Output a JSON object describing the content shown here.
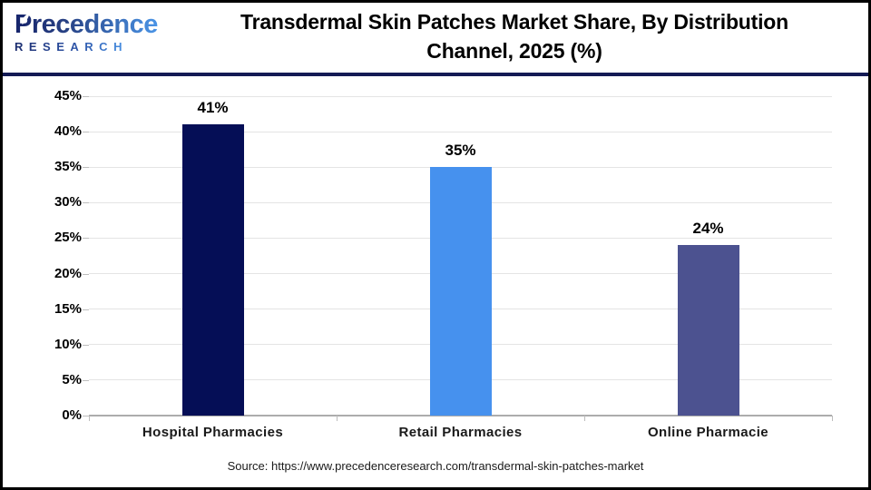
{
  "header": {
    "logo": {
      "name": "Precedence",
      "subtitle": "RESEARCH"
    },
    "title_line1": "Transdermal Skin Patches Market Share, By Distribution",
    "title_line2": "Channel, 2025 (%)"
  },
  "chart_data": {
    "type": "bar",
    "title": "Transdermal Skin Patches Market Share, By Distribution Channel, 2025 (%)",
    "categories": [
      "Hospital Pharmacies",
      "Retail Pharmacies",
      "Online Pharmacie"
    ],
    "values": [
      41,
      35,
      24
    ],
    "value_labels": [
      "41%",
      "35%",
      "24%"
    ],
    "bar_colors": [
      "#050E56",
      "#4691EE",
      "#4C5290"
    ],
    "xlabel": "",
    "ylabel": "",
    "ylim": [
      0,
      45
    ],
    "ytick_step": 5,
    "ytick_labels": [
      "0%",
      "5%",
      "10%",
      "15%",
      "20%",
      "25%",
      "30%",
      "35%",
      "40%",
      "45%"
    ],
    "grid": true,
    "legend": "none"
  },
  "footer": {
    "source": "Source: https://www.precedenceresearch.com/transdermal-skin-patches-market"
  },
  "colors": {
    "bar_hospital": "#050E56",
    "bar_retail": "#4691EE",
    "bar_online": "#4C5290",
    "header_separator": "#141A54",
    "gridline": "#E4E4E4",
    "axis": "#ACACAC",
    "frame_border": "#000000",
    "logo_navy": "#16246B",
    "logo_blue": "#4A94E6"
  }
}
